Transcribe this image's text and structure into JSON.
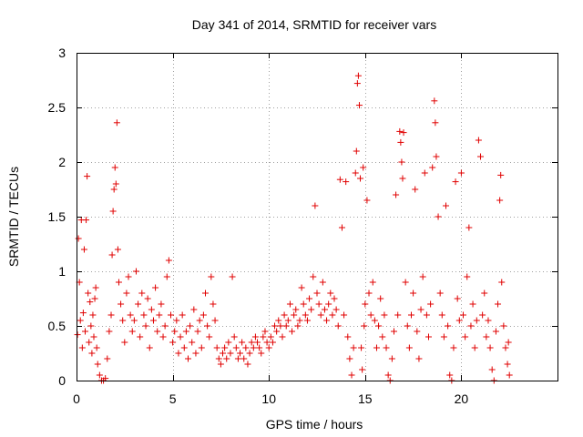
{
  "chart_data": {
    "type": "scatter",
    "title": "Day 341 of 2014, SRMTID for receiver vars",
    "xlabel": "GPS time / hours",
    "ylabel": "SRMTID / TECUs",
    "xlim": [
      0,
      25
    ],
    "ylim": [
      0,
      3
    ],
    "xticks": [
      0,
      5,
      10,
      15,
      20
    ],
    "xtick_labels": [
      "0",
      "5",
      "10",
      "15",
      "20"
    ],
    "yticks": [
      0,
      0.5,
      1,
      1.5,
      2,
      2.5,
      3
    ],
    "ytick_labels": [
      "0",
      "0.5",
      "1",
      "1.5",
      "2",
      "2.5",
      "3"
    ],
    "grid": true,
    "marker": "+",
    "series": [
      {
        "name": "SRMTID",
        "color": "#e00000",
        "points": [
          [
            0.05,
            0.42
          ],
          [
            0.1,
            1.3
          ],
          [
            0.15,
            0.9
          ],
          [
            0.2,
            0.55
          ],
          [
            0.25,
            1.47
          ],
          [
            0.3,
            0.3
          ],
          [
            0.35,
            0.62
          ],
          [
            0.4,
            1.2
          ],
          [
            0.45,
            0.45
          ],
          [
            0.5,
            1.47
          ],
          [
            0.55,
            1.87
          ],
          [
            0.6,
            0.8
          ],
          [
            0.65,
            0.35
          ],
          [
            0.7,
            0.72
          ],
          [
            0.75,
            0.5
          ],
          [
            0.8,
            0.25
          ],
          [
            0.85,
            0.6
          ],
          [
            0.9,
            0.4
          ],
          [
            0.95,
            0.75
          ],
          [
            1.0,
            0.85
          ],
          [
            1.05,
            0.3
          ],
          [
            1.1,
            0.15
          ],
          [
            1.2,
            0.05
          ],
          [
            1.3,
            0.0
          ],
          [
            1.4,
            0.0
          ],
          [
            1.5,
            0.02
          ],
          [
            1.6,
            0.2
          ],
          [
            1.7,
            0.45
          ],
          [
            1.8,
            0.6
          ],
          [
            1.85,
            1.15
          ],
          [
            1.9,
            1.55
          ],
          [
            1.95,
            1.75
          ],
          [
            2.0,
            1.95
          ],
          [
            2.05,
            1.8
          ],
          [
            2.1,
            2.36
          ],
          [
            2.15,
            1.2
          ],
          [
            2.2,
            0.9
          ],
          [
            2.3,
            0.7
          ],
          [
            2.4,
            0.55
          ],
          [
            2.5,
            0.35
          ],
          [
            2.6,
            0.8
          ],
          [
            2.7,
            0.95
          ],
          [
            2.8,
            0.6
          ],
          [
            2.9,
            0.45
          ],
          [
            3.0,
            0.55
          ],
          [
            3.1,
            1.0
          ],
          [
            3.2,
            0.7
          ],
          [
            3.3,
            0.4
          ],
          [
            3.4,
            0.8
          ],
          [
            3.5,
            0.6
          ],
          [
            3.6,
            0.5
          ],
          [
            3.7,
            0.75
          ],
          [
            3.8,
            0.3
          ],
          [
            3.9,
            0.65
          ],
          [
            4.0,
            0.55
          ],
          [
            4.1,
            0.85
          ],
          [
            4.2,
            0.45
          ],
          [
            4.3,
            0.6
          ],
          [
            4.4,
            0.7
          ],
          [
            4.5,
            0.4
          ],
          [
            4.6,
            0.5
          ],
          [
            4.7,
            0.95
          ],
          [
            4.8,
            1.1
          ],
          [
            4.9,
            0.6
          ],
          [
            5.0,
            0.35
          ],
          [
            5.1,
            0.45
          ],
          [
            5.2,
            0.55
          ],
          [
            5.3,
            0.25
          ],
          [
            5.4,
            0.4
          ],
          [
            5.5,
            0.6
          ],
          [
            5.6,
            0.3
          ],
          [
            5.7,
            0.45
          ],
          [
            5.8,
            0.2
          ],
          [
            5.9,
            0.5
          ],
          [
            6.0,
            0.35
          ],
          [
            6.1,
            0.65
          ],
          [
            6.2,
            0.25
          ],
          [
            6.3,
            0.45
          ],
          [
            6.4,
            0.55
          ],
          [
            6.5,
            0.3
          ],
          [
            6.6,
            0.6
          ],
          [
            6.7,
            0.8
          ],
          [
            6.8,
            0.5
          ],
          [
            6.9,
            0.4
          ],
          [
            7.0,
            0.95
          ],
          [
            7.1,
            0.7
          ],
          [
            7.2,
            0.55
          ],
          [
            7.3,
            0.3
          ],
          [
            7.4,
            0.2
          ],
          [
            7.5,
            0.15
          ],
          [
            7.6,
            0.25
          ],
          [
            7.7,
            0.3
          ],
          [
            7.8,
            0.2
          ],
          [
            7.9,
            0.35
          ],
          [
            8.0,
            0.25
          ],
          [
            8.1,
            0.95
          ],
          [
            8.2,
            0.4
          ],
          [
            8.3,
            0.3
          ],
          [
            8.4,
            0.2
          ],
          [
            8.5,
            0.25
          ],
          [
            8.6,
            0.35
          ],
          [
            8.7,
            0.2
          ],
          [
            8.8,
            0.3
          ],
          [
            8.9,
            0.15
          ],
          [
            9.0,
            0.25
          ],
          [
            9.1,
            0.35
          ],
          [
            9.2,
            0.3
          ],
          [
            9.3,
            0.4
          ],
          [
            9.4,
            0.35
          ],
          [
            9.5,
            0.3
          ],
          [
            9.6,
            0.25
          ],
          [
            9.7,
            0.4
          ],
          [
            9.8,
            0.45
          ],
          [
            9.9,
            0.35
          ],
          [
            10.0,
            0.3
          ],
          [
            10.1,
            0.4
          ],
          [
            10.2,
            0.35
          ],
          [
            10.3,
            0.5
          ],
          [
            10.4,
            0.45
          ],
          [
            10.5,
            0.55
          ],
          [
            10.6,
            0.5
          ],
          [
            10.7,
            0.4
          ],
          [
            10.8,
            0.6
          ],
          [
            10.9,
            0.5
          ],
          [
            11.0,
            0.55
          ],
          [
            11.1,
            0.7
          ],
          [
            11.2,
            0.45
          ],
          [
            11.3,
            0.6
          ],
          [
            11.4,
            0.65
          ],
          [
            11.5,
            0.5
          ],
          [
            11.6,
            0.55
          ],
          [
            11.7,
            0.85
          ],
          [
            11.8,
            0.7
          ],
          [
            11.9,
            0.6
          ],
          [
            12.0,
            0.55
          ],
          [
            12.1,
            0.75
          ],
          [
            12.2,
            0.65
          ],
          [
            12.3,
            0.95
          ],
          [
            12.4,
            1.6
          ],
          [
            12.5,
            0.8
          ],
          [
            12.6,
            0.7
          ],
          [
            12.7,
            0.6
          ],
          [
            12.8,
            0.9
          ],
          [
            12.9,
            0.65
          ],
          [
            13.0,
            0.55
          ],
          [
            13.1,
            0.7
          ],
          [
            13.2,
            0.8
          ],
          [
            13.3,
            0.6
          ],
          [
            13.4,
            0.75
          ],
          [
            13.5,
            0.65
          ],
          [
            13.6,
            0.5
          ],
          [
            13.7,
            1.84
          ],
          [
            13.8,
            1.4
          ],
          [
            13.9,
            0.6
          ],
          [
            14.0,
            1.82
          ],
          [
            14.1,
            0.4
          ],
          [
            14.2,
            0.2
          ],
          [
            14.3,
            0.05
          ],
          [
            14.4,
            0.3
          ],
          [
            14.5,
            1.9
          ],
          [
            14.55,
            2.1
          ],
          [
            14.6,
            2.72
          ],
          [
            14.65,
            2.79
          ],
          [
            14.7,
            2.52
          ],
          [
            14.75,
            1.85
          ],
          [
            14.8,
            0.3
          ],
          [
            14.85,
            0.1
          ],
          [
            14.9,
            1.95
          ],
          [
            14.95,
            0.5
          ],
          [
            15.0,
            0.7
          ],
          [
            15.1,
            1.65
          ],
          [
            15.2,
            0.8
          ],
          [
            15.3,
            0.6
          ],
          [
            15.4,
            0.9
          ],
          [
            15.5,
            0.55
          ],
          [
            15.6,
            0.3
          ],
          [
            15.7,
            0.5
          ],
          [
            15.8,
            0.75
          ],
          [
            15.9,
            0.4
          ],
          [
            16.0,
            0.6
          ],
          [
            16.1,
            0.3
          ],
          [
            16.2,
            0.05
          ],
          [
            16.3,
            0.0
          ],
          [
            16.4,
            0.2
          ],
          [
            16.5,
            0.45
          ],
          [
            16.6,
            1.7
          ],
          [
            16.7,
            0.6
          ],
          [
            16.8,
            2.28
          ],
          [
            16.85,
            2.18
          ],
          [
            16.9,
            2.0
          ],
          [
            16.95,
            1.85
          ],
          [
            17.0,
            2.27
          ],
          [
            17.1,
            0.9
          ],
          [
            17.2,
            0.5
          ],
          [
            17.3,
            0.3
          ],
          [
            17.4,
            0.6
          ],
          [
            17.5,
            0.8
          ],
          [
            17.6,
            1.75
          ],
          [
            17.7,
            0.45
          ],
          [
            17.8,
            0.2
          ],
          [
            17.9,
            0.65
          ],
          [
            18.0,
            0.95
          ],
          [
            18.1,
            1.9
          ],
          [
            18.2,
            0.6
          ],
          [
            18.3,
            0.4
          ],
          [
            18.4,
            0.7
          ],
          [
            18.5,
            1.95
          ],
          [
            18.6,
            2.56
          ],
          [
            18.65,
            2.36
          ],
          [
            18.7,
            2.05
          ],
          [
            18.8,
            1.5
          ],
          [
            18.9,
            0.8
          ],
          [
            19.0,
            0.6
          ],
          [
            19.1,
            0.4
          ],
          [
            19.2,
            1.6
          ],
          [
            19.3,
            0.5
          ],
          [
            19.4,
            0.05
          ],
          [
            19.5,
            0.0
          ],
          [
            19.6,
            0.3
          ],
          [
            19.7,
            1.82
          ],
          [
            19.8,
            0.75
          ],
          [
            19.9,
            0.55
          ],
          [
            20.0,
            1.9
          ],
          [
            20.1,
            0.6
          ],
          [
            20.2,
            0.4
          ],
          [
            20.3,
            0.95
          ],
          [
            20.4,
            1.4
          ],
          [
            20.5,
            0.5
          ],
          [
            20.6,
            0.7
          ],
          [
            20.7,
            0.3
          ],
          [
            20.8,
            0.55
          ],
          [
            20.9,
            2.2
          ],
          [
            21.0,
            2.05
          ],
          [
            21.1,
            0.6
          ],
          [
            21.2,
            0.8
          ],
          [
            21.3,
            0.4
          ],
          [
            21.4,
            0.55
          ],
          [
            21.5,
            0.3
          ],
          [
            21.6,
            0.1
          ],
          [
            21.7,
            0.0
          ],
          [
            21.8,
            0.45
          ],
          [
            21.9,
            0.7
          ],
          [
            22.0,
            1.65
          ],
          [
            22.05,
            1.88
          ],
          [
            22.1,
            0.9
          ],
          [
            22.2,
            0.5
          ],
          [
            22.3,
            0.3
          ],
          [
            22.4,
            0.15
          ],
          [
            22.45,
            0.35
          ],
          [
            22.5,
            0.05
          ]
        ]
      }
    ]
  }
}
